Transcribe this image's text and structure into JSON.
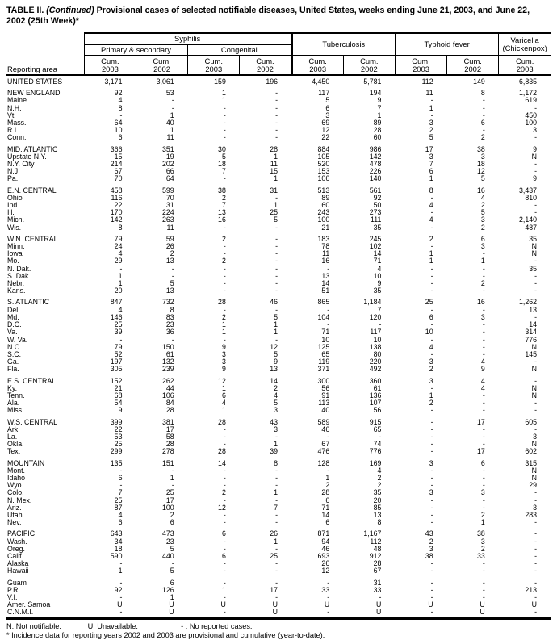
{
  "title": {
    "prefix": "TABLE II. ",
    "continued": "(Continued)",
    "rest": " Provisional cases of selected notifiable diseases, United States, weeks ending June 21, 2003, and June 22, 2002 (25th Week)*"
  },
  "table": {
    "reporting_area_label": "Reporting area",
    "groups": {
      "syphilis": "Syphilis",
      "primary_secondary": "Primary & secondary",
      "congenital": "Congenital",
      "tuberculosis": "Tuberculosis",
      "typhoid": "Typhoid fever",
      "varicella_line1": "Varicella",
      "varicella_line2": "(Chickenpox)"
    },
    "cum_label": "Cum.",
    "years": [
      "2003",
      "2002",
      "2003",
      "2002",
      "2003",
      "2002",
      "2003",
      "2002",
      "2003"
    ],
    "rows": [
      {
        "area": "UNITED STATES",
        "gap": false,
        "values": [
          "3,171",
          "3,061",
          "159",
          "196",
          "4,450",
          "5,781",
          "112",
          "149",
          "6,835"
        ]
      },
      {
        "area": "NEW ENGLAND",
        "gap": true,
        "values": [
          "92",
          "53",
          "1",
          "-",
          "117",
          "194",
          "11",
          "8",
          "1,172"
        ]
      },
      {
        "area": "Maine",
        "gap": false,
        "values": [
          "4",
          "-",
          "1",
          "-",
          "5",
          "9",
          "-",
          "-",
          "619"
        ]
      },
      {
        "area": "N.H.",
        "gap": false,
        "values": [
          "8",
          "-",
          "-",
          "-",
          "6",
          "7",
          "1",
          "-",
          "-"
        ]
      },
      {
        "area": "Vt.",
        "gap": false,
        "values": [
          "-",
          "1",
          "-",
          "-",
          "3",
          "1",
          "-",
          "-",
          "450"
        ]
      },
      {
        "area": "Mass.",
        "gap": false,
        "values": [
          "64",
          "40",
          "-",
          "-",
          "69",
          "89",
          "3",
          "6",
          "100"
        ]
      },
      {
        "area": "R.I.",
        "gap": false,
        "values": [
          "10",
          "1",
          "-",
          "-",
          "12",
          "28",
          "2",
          "-",
          "3"
        ]
      },
      {
        "area": "Conn.",
        "gap": false,
        "values": [
          "6",
          "11",
          "-",
          "-",
          "22",
          "60",
          "5",
          "2",
          "-"
        ]
      },
      {
        "area": "MID. ATLANTIC",
        "gap": true,
        "values": [
          "366",
          "351",
          "30",
          "28",
          "884",
          "986",
          "17",
          "38",
          "9"
        ]
      },
      {
        "area": "Upstate N.Y.",
        "gap": false,
        "values": [
          "15",
          "19",
          "5",
          "1",
          "105",
          "142",
          "3",
          "3",
          "N"
        ]
      },
      {
        "area": "N.Y. City",
        "gap": false,
        "values": [
          "214",
          "202",
          "18",
          "11",
          "520",
          "478",
          "7",
          "18",
          "-"
        ]
      },
      {
        "area": "N.J.",
        "gap": false,
        "values": [
          "67",
          "66",
          "7",
          "15",
          "153",
          "226",
          "6",
          "12",
          "-"
        ]
      },
      {
        "area": "Pa.",
        "gap": false,
        "values": [
          "70",
          "64",
          "-",
          "1",
          "106",
          "140",
          "1",
          "5",
          "9"
        ]
      },
      {
        "area": "E.N. CENTRAL",
        "gap": true,
        "values": [
          "458",
          "599",
          "38",
          "31",
          "513",
          "561",
          "8",
          "16",
          "3,437"
        ]
      },
      {
        "area": "Ohio",
        "gap": false,
        "values": [
          "116",
          "70",
          "2",
          "-",
          "89",
          "92",
          "-",
          "4",
          "810"
        ]
      },
      {
        "area": "Ind.",
        "gap": false,
        "values": [
          "22",
          "31",
          "7",
          "1",
          "60",
          "50",
          "4",
          "2",
          "-"
        ]
      },
      {
        "area": "Ill.",
        "gap": false,
        "values": [
          "170",
          "224",
          "13",
          "25",
          "243",
          "273",
          "-",
          "5",
          "-"
        ]
      },
      {
        "area": "Mich.",
        "gap": false,
        "values": [
          "142",
          "263",
          "16",
          "5",
          "100",
          "111",
          "4",
          "3",
          "2,140"
        ]
      },
      {
        "area": "Wis.",
        "gap": false,
        "values": [
          "8",
          "11",
          "-",
          "-",
          "21",
          "35",
          "-",
          "2",
          "487"
        ]
      },
      {
        "area": "W.N. CENTRAL",
        "gap": true,
        "values": [
          "79",
          "59",
          "2",
          "-",
          "183",
          "245",
          "2",
          "6",
          "35"
        ]
      },
      {
        "area": "Minn.",
        "gap": false,
        "values": [
          "24",
          "26",
          "-",
          "-",
          "78",
          "102",
          "-",
          "3",
          "N"
        ]
      },
      {
        "area": "Iowa",
        "gap": false,
        "values": [
          "4",
          "2",
          "-",
          "-",
          "11",
          "14",
          "1",
          "-",
          "N"
        ]
      },
      {
        "area": "Mo.",
        "gap": false,
        "values": [
          "29",
          "13",
          "2",
          "-",
          "16",
          "71",
          "1",
          "1",
          "-"
        ]
      },
      {
        "area": "N. Dak.",
        "gap": false,
        "values": [
          "-",
          "-",
          "-",
          "-",
          "-",
          "4",
          "-",
          "-",
          "35"
        ]
      },
      {
        "area": "S. Dak.",
        "gap": false,
        "values": [
          "1",
          "-",
          "-",
          "-",
          "13",
          "10",
          "-",
          "-",
          "-"
        ]
      },
      {
        "area": "Nebr.",
        "gap": false,
        "values": [
          "1",
          "5",
          "-",
          "-",
          "14",
          "9",
          "-",
          "2",
          "-"
        ]
      },
      {
        "area": "Kans.",
        "gap": false,
        "values": [
          "20",
          "13",
          "-",
          "-",
          "51",
          "35",
          "-",
          "-",
          "-"
        ]
      },
      {
        "area": "S. ATLANTIC",
        "gap": true,
        "values": [
          "847",
          "732",
          "28",
          "46",
          "865",
          "1,184",
          "25",
          "16",
          "1,262"
        ]
      },
      {
        "area": "Del.",
        "gap": false,
        "values": [
          "4",
          "8",
          "-",
          "-",
          "-",
          "7",
          "-",
          "-",
          "13"
        ]
      },
      {
        "area": "Md.",
        "gap": false,
        "values": [
          "146",
          "83",
          "2",
          "5",
          "104",
          "120",
          "6",
          "3",
          "-"
        ]
      },
      {
        "area": "D.C.",
        "gap": false,
        "values": [
          "25",
          "23",
          "1",
          "1",
          "-",
          "-",
          "-",
          "-",
          "14"
        ]
      },
      {
        "area": "Va.",
        "gap": false,
        "values": [
          "39",
          "36",
          "1",
          "1",
          "71",
          "117",
          "10",
          "-",
          "314"
        ]
      },
      {
        "area": "W. Va.",
        "gap": false,
        "values": [
          "-",
          "-",
          "-",
          "-",
          "10",
          "10",
          "-",
          "-",
          "776"
        ]
      },
      {
        "area": "N.C.",
        "gap": false,
        "values": [
          "79",
          "150",
          "9",
          "12",
          "125",
          "138",
          "4",
          "-",
          "N"
        ]
      },
      {
        "area": "S.C.",
        "gap": false,
        "values": [
          "52",
          "61",
          "3",
          "5",
          "65",
          "80",
          "-",
          "-",
          "145"
        ]
      },
      {
        "area": "Ga.",
        "gap": false,
        "values": [
          "197",
          "132",
          "3",
          "9",
          "119",
          "220",
          "3",
          "4",
          "-"
        ]
      },
      {
        "area": "Fla.",
        "gap": false,
        "values": [
          "305",
          "239",
          "9",
          "13",
          "371",
          "492",
          "2",
          "9",
          "N"
        ]
      },
      {
        "area": "E.S. CENTRAL",
        "gap": true,
        "values": [
          "152",
          "262",
          "12",
          "14",
          "300",
          "360",
          "3",
          "4",
          "-"
        ]
      },
      {
        "area": "Ky.",
        "gap": false,
        "values": [
          "21",
          "44",
          "1",
          "2",
          "56",
          "61",
          "-",
          "4",
          "N"
        ]
      },
      {
        "area": "Tenn.",
        "gap": false,
        "values": [
          "68",
          "106",
          "6",
          "4",
          "91",
          "136",
          "1",
          "-",
          "N"
        ]
      },
      {
        "area": "Ala.",
        "gap": false,
        "values": [
          "54",
          "84",
          "4",
          "5",
          "113",
          "107",
          "2",
          "-",
          "-"
        ]
      },
      {
        "area": "Miss.",
        "gap": false,
        "values": [
          "9",
          "28",
          "1",
          "3",
          "40",
          "56",
          "-",
          "-",
          "-"
        ]
      },
      {
        "area": "W.S. CENTRAL",
        "gap": true,
        "values": [
          "399",
          "381",
          "28",
          "43",
          "589",
          "915",
          "-",
          "17",
          "605"
        ]
      },
      {
        "area": "Ark.",
        "gap": false,
        "values": [
          "22",
          "17",
          "-",
          "3",
          "46",
          "65",
          "-",
          "-",
          "-"
        ]
      },
      {
        "area": "La.",
        "gap": false,
        "values": [
          "53",
          "58",
          "-",
          "-",
          "-",
          "-",
          "-",
          "-",
          "3"
        ]
      },
      {
        "area": "Okla.",
        "gap": false,
        "values": [
          "25",
          "28",
          "-",
          "1",
          "67",
          "74",
          "-",
          "-",
          "N"
        ]
      },
      {
        "area": "Tex.",
        "gap": false,
        "values": [
          "299",
          "278",
          "28",
          "39",
          "476",
          "776",
          "-",
          "17",
          "602"
        ]
      },
      {
        "area": "MOUNTAIN",
        "gap": true,
        "values": [
          "135",
          "151",
          "14",
          "8",
          "128",
          "169",
          "3",
          "6",
          "315"
        ]
      },
      {
        "area": "Mont.",
        "gap": false,
        "values": [
          "-",
          "-",
          "-",
          "-",
          "-",
          "4",
          "-",
          "-",
          "N"
        ]
      },
      {
        "area": "Idaho",
        "gap": false,
        "values": [
          "6",
          "1",
          "-",
          "-",
          "1",
          "2",
          "-",
          "-",
          "N"
        ]
      },
      {
        "area": "Wyo.",
        "gap": false,
        "values": [
          "-",
          "-",
          "-",
          "-",
          "2",
          "2",
          "-",
          "-",
          "29"
        ]
      },
      {
        "area": "Colo.",
        "gap": false,
        "values": [
          "7",
          "25",
          "2",
          "1",
          "28",
          "35",
          "3",
          "3",
          "-"
        ]
      },
      {
        "area": "N. Mex.",
        "gap": false,
        "values": [
          "25",
          "17",
          "-",
          "-",
          "6",
          "20",
          "-",
          "-",
          "-"
        ]
      },
      {
        "area": "Ariz.",
        "gap": false,
        "values": [
          "87",
          "100",
          "12",
          "7",
          "71",
          "85",
          "-",
          "-",
          "3"
        ]
      },
      {
        "area": "Utah",
        "gap": false,
        "values": [
          "4",
          "2",
          "-",
          "-",
          "14",
          "13",
          "-",
          "2",
          "283"
        ]
      },
      {
        "area": "Nev.",
        "gap": false,
        "values": [
          "6",
          "6",
          "-",
          "-",
          "6",
          "8",
          "-",
          "1",
          "-"
        ]
      },
      {
        "area": "PACIFIC",
        "gap": true,
        "values": [
          "643",
          "473",
          "6",
          "26",
          "871",
          "1,167",
          "43",
          "38",
          "-"
        ]
      },
      {
        "area": "Wash.",
        "gap": false,
        "values": [
          "34",
          "23",
          "-",
          "1",
          "94",
          "112",
          "2",
          "3",
          "-"
        ]
      },
      {
        "area": "Oreg.",
        "gap": false,
        "values": [
          "18",
          "5",
          "-",
          "-",
          "46",
          "48",
          "3",
          "2",
          "-"
        ]
      },
      {
        "area": "Calif.",
        "gap": false,
        "values": [
          "590",
          "440",
          "6",
          "25",
          "693",
          "912",
          "38",
          "33",
          "-"
        ]
      },
      {
        "area": "Alaska",
        "gap": false,
        "values": [
          "-",
          "-",
          "-",
          "-",
          "26",
          "28",
          "-",
          "-",
          "-"
        ]
      },
      {
        "area": "Hawaii",
        "gap": false,
        "values": [
          "1",
          "5",
          "-",
          "-",
          "12",
          "67",
          "-",
          "-",
          "-"
        ]
      },
      {
        "area": "Guam",
        "gap": true,
        "values": [
          "-",
          "6",
          "-",
          "-",
          "-",
          "31",
          "-",
          "-",
          "-"
        ]
      },
      {
        "area": "P.R.",
        "gap": false,
        "values": [
          "92",
          "126",
          "1",
          "17",
          "33",
          "33",
          "-",
          "-",
          "213"
        ]
      },
      {
        "area": "V.I.",
        "gap": false,
        "values": [
          "-",
          "1",
          "-",
          "-",
          "-",
          "-",
          "-",
          "-",
          "-"
        ]
      },
      {
        "area": "Amer. Samoa",
        "gap": false,
        "values": [
          "U",
          "U",
          "U",
          "U",
          "U",
          "U",
          "U",
          "U",
          "U"
        ]
      },
      {
        "area": "C.N.M.I.",
        "gap": false,
        "values": [
          "-",
          "U",
          "-",
          "U",
          "-",
          "U",
          "-",
          "U",
          "-"
        ]
      }
    ]
  },
  "footnotes": {
    "legend_n": "N: Not notifiable.",
    "legend_u": "U: Unavailable.",
    "legend_dash": "- : No reported cases.",
    "note": "* Incidence data for reporting years 2002 and 2003 are provisional and cumulative (year-to-date)."
  }
}
